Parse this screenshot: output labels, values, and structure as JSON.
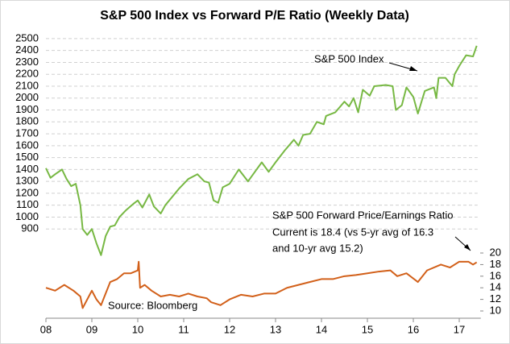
{
  "chart_data": {
    "type": "line",
    "title": "S&P 500 Index vs Forward P/E Ratio (Weekly Data)",
    "annotations": [
      "Current is 18.4 (vs 5-yr avg of 16.3",
      "and 10-yr avg 15.2)",
      "Source: Bloomberg"
    ],
    "xlim": [
      2008,
      2017.4
    ],
    "xticks": [
      {
        "value": 2008,
        "label": "08"
      },
      {
        "value": 2009,
        "label": "09"
      },
      {
        "value": 2010,
        "label": "10"
      },
      {
        "value": 2011,
        "label": "11"
      },
      {
        "value": 2012,
        "label": "12"
      },
      {
        "value": 2013,
        "label": "13"
      },
      {
        "value": 2014,
        "label": "14"
      },
      {
        "value": 2015,
        "label": "15"
      },
      {
        "value": 2016,
        "label": "16"
      },
      {
        "value": 2017,
        "label": "17"
      }
    ],
    "ylim": [
      150,
      2540
    ],
    "yticks": [
      900,
      1000,
      1100,
      1200,
      1300,
      1400,
      1500,
      1600,
      1700,
      1800,
      1900,
      2000,
      2100,
      2200,
      2300,
      2400,
      2500
    ],
    "y2lim": [
      8.75,
      57.8
    ],
    "y2ticks": [
      10,
      12,
      14,
      16,
      18,
      20
    ],
    "grid": true,
    "series": [
      {
        "name": "S&P 500 Index",
        "color": "#77b843",
        "x": [
          2008.0,
          2008.1,
          2008.2,
          2008.35,
          2008.45,
          2008.55,
          2008.65,
          2008.75,
          2008.8,
          2008.9,
          2009.0,
          2009.1,
          2009.2,
          2009.3,
          2009.4,
          2009.5,
          2009.6,
          2009.75,
          2009.9,
          2010.0,
          2010.1,
          2010.25,
          2010.35,
          2010.5,
          2010.6,
          2010.75,
          2010.9,
          2011.1,
          2011.3,
          2011.45,
          2011.55,
          2011.65,
          2011.75,
          2011.85,
          2012.0,
          2012.2,
          2012.4,
          2012.55,
          2012.7,
          2012.85,
          2013.0,
          2013.2,
          2013.4,
          2013.5,
          2013.6,
          2013.75,
          2013.9,
          2014.05,
          2014.1,
          2014.3,
          2014.5,
          2014.6,
          2014.7,
          2014.8,
          2014.9,
          2015.05,
          2015.15,
          2015.4,
          2015.55,
          2015.62,
          2015.75,
          2015.85,
          2016.0,
          2016.1,
          2016.25,
          2016.45,
          2016.5,
          2016.55,
          2016.7,
          2016.85,
          2016.9,
          2017.0,
          2017.15,
          2017.3,
          2017.38
        ],
        "values": [
          1411,
          1330,
          1360,
          1400,
          1320,
          1260,
          1280,
          1100,
          900,
          850,
          900,
          780,
          680,
          840,
          920,
          930,
          1000,
          1060,
          1110,
          1140,
          1080,
          1190,
          1090,
          1030,
          1100,
          1170,
          1240,
          1320,
          1360,
          1300,
          1290,
          1140,
          1120,
          1250,
          1280,
          1400,
          1300,
          1380,
          1460,
          1380,
          1460,
          1560,
          1650,
          1600,
          1690,
          1700,
          1800,
          1780,
          1850,
          1880,
          1970,
          1930,
          2000,
          1880,
          2070,
          2020,
          2100,
          2110,
          2100,
          1900,
          1940,
          2090,
          2010,
          1870,
          2060,
          2090,
          2000,
          2170,
          2170,
          2100,
          2200,
          2270,
          2360,
          2350,
          2440
        ]
      },
      {
        "name": "S&P 500 Forward Price/Earnings Ratio",
        "color": "#d2601a",
        "axis": "y2",
        "x": [
          2008.0,
          2008.2,
          2008.4,
          2008.6,
          2008.75,
          2008.8,
          2008.9,
          2009.0,
          2009.1,
          2009.2,
          2009.3,
          2009.4,
          2009.55,
          2009.7,
          2009.85,
          2010.0,
          2010.02,
          2010.05,
          2010.15,
          2010.3,
          2010.5,
          2010.7,
          2010.9,
          2011.1,
          2011.3,
          2011.5,
          2011.6,
          2011.8,
          2012.0,
          2012.25,
          2012.5,
          2012.75,
          2013.0,
          2013.25,
          2013.5,
          2013.75,
          2014.0,
          2014.25,
          2014.5,
          2014.75,
          2015.0,
          2015.25,
          2015.5,
          2015.65,
          2015.85,
          2016.1,
          2016.3,
          2016.6,
          2016.8,
          2017.0,
          2017.2,
          2017.3,
          2017.38
        ],
        "values": [
          14,
          13.5,
          14.5,
          13.5,
          12.5,
          10.5,
          12,
          13.5,
          12,
          11,
          13,
          15,
          15.5,
          16.5,
          16.5,
          17,
          18.5,
          14,
          14.5,
          13.5,
          12.5,
          12.8,
          12.5,
          13,
          12.5,
          12.2,
          11.5,
          11,
          12,
          12.8,
          12.5,
          13,
          13,
          14,
          14.5,
          15,
          15.5,
          15.5,
          16,
          16.2,
          16.5,
          16.8,
          17,
          16,
          16.5,
          15,
          17,
          18,
          17.5,
          18.5,
          18.5,
          18,
          18.4
        ]
      }
    ]
  }
}
